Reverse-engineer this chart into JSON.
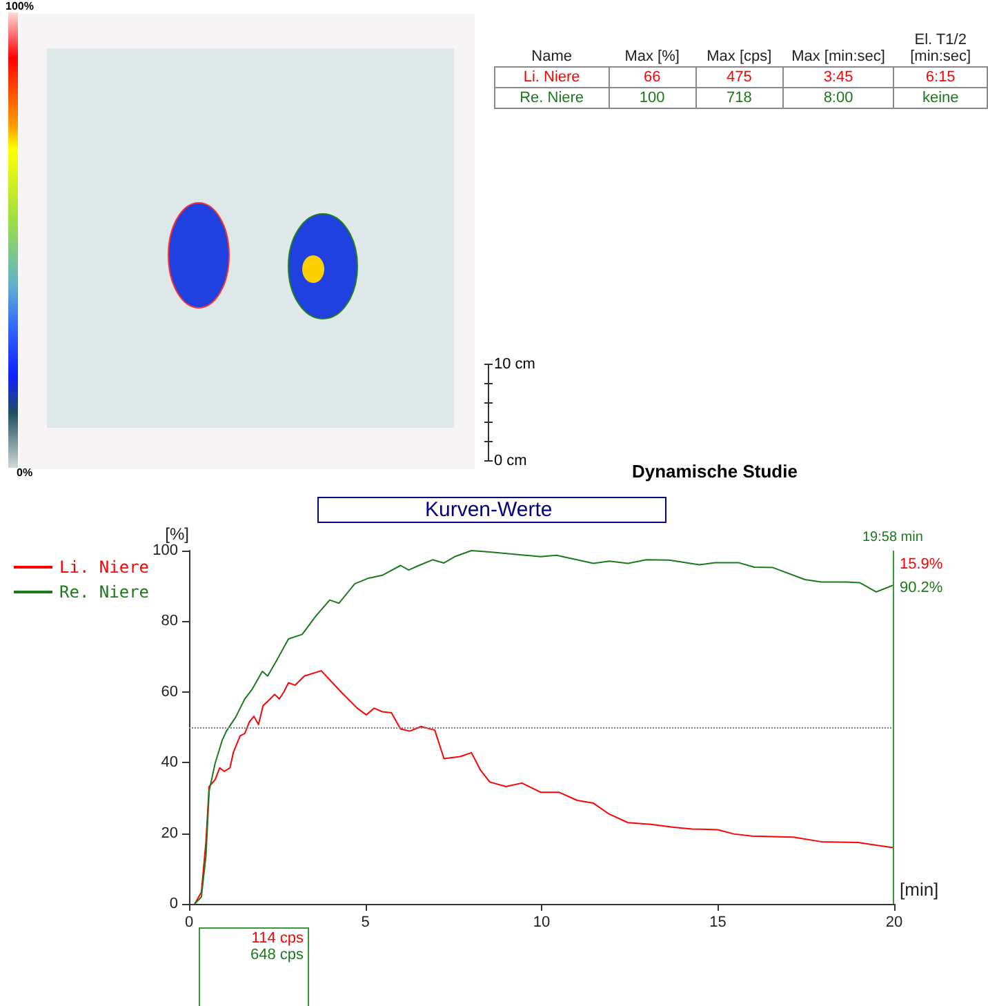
{
  "chart_data": {
    "type": "line",
    "title": "Kurven-Werte",
    "xlabel": "[min]",
    "ylabel": "[%]",
    "xlim": [
      0,
      20
    ],
    "xticks": [
      0,
      5,
      10,
      15,
      20
    ],
    "ylim": [
      0,
      100
    ],
    "yticks": [
      0,
      20,
      40,
      60,
      80,
      100
    ],
    "grid": false,
    "legend": "top left",
    "marker": "none",
    "line_style": "solid",
    "ref_lines": [
      {
        "axis": "y",
        "value": 50,
        "label": null,
        "color": "#808080",
        "line_style": "dotted"
      },
      {
        "axis": "x",
        "value": 19.9667,
        "label": null,
        "color": "#339933",
        "line_style": "solid"
      }
    ],
    "annotations": [
      "Name",
      "Max [%]",
      "Max [cps]",
      "Max [min:sec]",
      "El. T1/2 [min:sec]",
      "Li. Niere",
      "66",
      "475",
      "3:45",
      "6:15",
      "Re. Niere",
      "100",
      "718",
      "8:00",
      "keine",
      "10 cm",
      "0 cm",
      "100%",
      "0%",
      "Dynamische Studie",
      "15.9%",
      "90.2%",
      "114 cps",
      "648 cps",
      "19:58 min"
    ],
    "series": [
      {
        "name": "Li. Niere",
        "color": "#ff0000",
        "x": [
          0.16,
          0.35,
          0.48,
          0.57,
          0.74,
          0.87,
          1.0,
          1.16,
          1.26,
          1.45,
          1.58,
          1.71,
          1.84,
          1.97,
          2.1,
          2.3,
          2.43,
          2.56,
          2.69,
          2.82,
          3.01,
          3.27,
          3.75,
          4.31,
          4.77,
          5.03,
          5.25,
          5.48,
          5.74,
          6.0,
          6.26,
          6.58,
          6.97,
          7.23,
          7.69,
          8.01,
          8.27,
          8.53,
          8.99,
          9.44,
          9.97,
          10.49,
          11.01,
          11.47,
          11.92,
          12.45,
          13.1,
          13.75,
          14.27,
          14.99,
          15.45,
          15.97,
          17.14,
          17.93,
          18.97,
          19.97
        ],
        "values": [
          0,
          3.3,
          17.6,
          33.2,
          35.2,
          38.5,
          37.5,
          38.5,
          43,
          47.6,
          48.2,
          51.5,
          53.1,
          50.8,
          56.1,
          58,
          59.3,
          58,
          60,
          62.6,
          61.9,
          64.5,
          66,
          60,
          55.4,
          53.5,
          55.4,
          54.4,
          54.1,
          49.5,
          48.9,
          50.2,
          49.2,
          41.1,
          41.7,
          42.8,
          37.8,
          34.5,
          33.2,
          34.2,
          31.6,
          31.6,
          29.3,
          28.5,
          25.4,
          23,
          22.5,
          21.7,
          21.2,
          21,
          19.8,
          19.2,
          18.9,
          17.6,
          17.4,
          15.9
        ]
      },
      {
        "name": "Re. Niere",
        "color": "#1a7a1a",
        "x": [
          0.16,
          0.35,
          0.48,
          0.57,
          0.74,
          0.94,
          1.06,
          1.32,
          1.58,
          1.78,
          2.08,
          2.23,
          2.49,
          2.82,
          3.21,
          3.6,
          3.99,
          4.25,
          4.7,
          5.09,
          5.48,
          6.0,
          6.23,
          6.52,
          6.91,
          7.23,
          7.56,
          8.01,
          8.53,
          9.97,
          10.42,
          11.47,
          11.92,
          12.45,
          12.97,
          13.62,
          14.47,
          14.92,
          15.58,
          16.03,
          16.56,
          17.47,
          17.93,
          18.64,
          19.03,
          19.49,
          19.82,
          19.97
        ],
        "values": [
          0,
          2,
          13.7,
          32,
          39.8,
          46.3,
          48.9,
          52.8,
          58,
          60.6,
          65.8,
          64.5,
          69,
          75,
          76.3,
          81.5,
          86,
          85.1,
          90.6,
          92.2,
          93,
          95.8,
          94.5,
          95.8,
          97.4,
          96.5,
          98.4,
          100,
          99.6,
          98.3,
          98.7,
          96.4,
          97,
          96.4,
          97.4,
          97.3,
          96,
          96.6,
          96.6,
          95.3,
          95.2,
          91.8,
          91.1,
          91.1,
          90.9,
          88.3,
          89.6,
          90.2
        ]
      }
    ]
  }
}
